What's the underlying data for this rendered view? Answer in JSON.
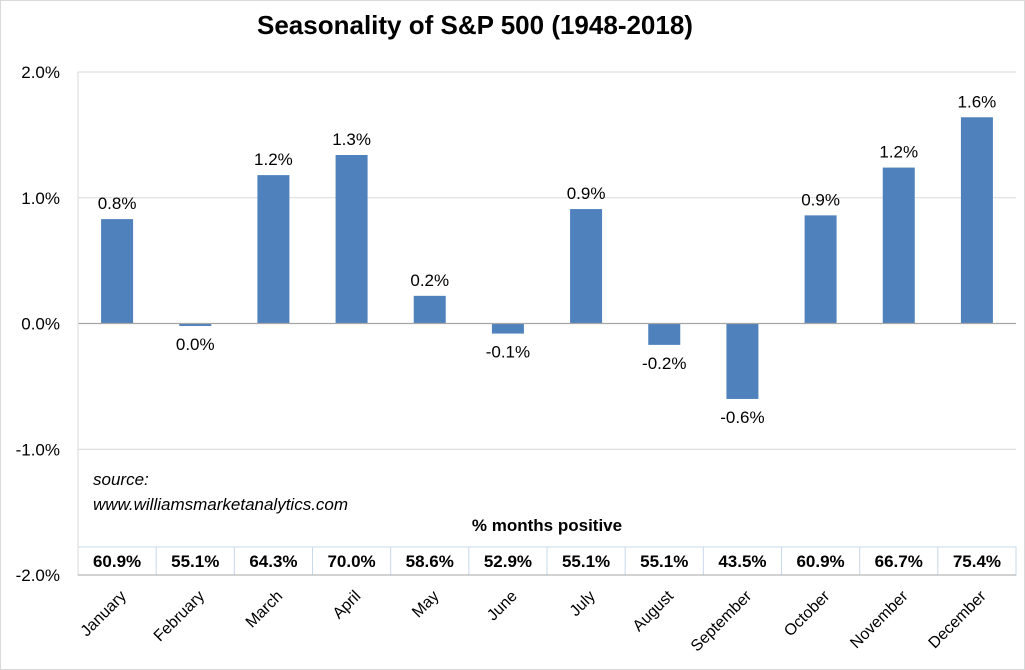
{
  "chart_data": {
    "type": "bar",
    "title": "Seasonality of S&P 500 (1948-2018)",
    "categories": [
      "January",
      "February",
      "March",
      "April",
      "May",
      "June",
      "July",
      "August",
      "September",
      "October",
      "November",
      "December"
    ],
    "values": [
      0.83,
      -0.02,
      1.18,
      1.34,
      0.22,
      -0.08,
      0.91,
      -0.17,
      -0.6,
      0.86,
      1.24,
      1.64
    ],
    "data_labels": [
      "0.8%",
      "0.0%",
      "1.2%",
      "1.3%",
      "0.2%",
      "-0.1%",
      "0.9%",
      "-0.2%",
      "-0.6%",
      "0.9%",
      "1.2%",
      "1.6%"
    ],
    "ylim": [
      -2.0,
      2.0
    ],
    "yticks": [
      2.0,
      1.0,
      0.0,
      -1.0,
      -2.0
    ],
    "ytick_labels": [
      "2.0%",
      "1.0%",
      "0.0%",
      "-1.0%",
      "-2.0%"
    ],
    "xlabel": "",
    "ylabel": "",
    "bar_color": "#4f81bd",
    "grid": true,
    "annotations": {
      "source_line1": "source:",
      "source_line2": "www.williamsmarketanalytics.com",
      "table_title": "% months  positive",
      "pct_positive": [
        "60.9%",
        "55.1%",
        "64.3%",
        "70.0%",
        "58.6%",
        "52.9%",
        "55.1%",
        "55.1%",
        "43.5%",
        "60.9%",
        "66.7%",
        "75.4%"
      ]
    }
  }
}
